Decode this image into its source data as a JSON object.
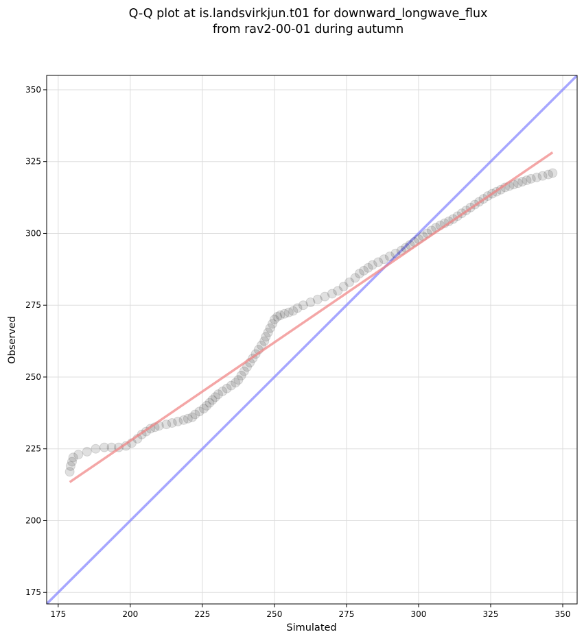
{
  "chart_data": {
    "type": "scatter",
    "title_line1": "Q-Q plot at is.landsvirkjun.t01 for downward_longwave_flux",
    "title_line2": "from rav2-00-01 during autumn",
    "xlabel": "Simulated",
    "ylabel": "Observed",
    "xlim": [
      171,
      355
    ],
    "ylim": [
      171,
      355
    ],
    "xticks": [
      175,
      200,
      225,
      250,
      275,
      300,
      325,
      350
    ],
    "yticks": [
      175,
      200,
      225,
      250,
      275,
      300,
      325,
      350
    ],
    "grid": true,
    "point_color": "#000000",
    "fit_line_color": "#f08080",
    "identity_line_color": "#8080ff",
    "fit_line": {
      "x": [
        179,
        346.5
      ],
      "y": [
        213.4,
        328.2
      ]
    },
    "identity_line": {
      "x": [
        171,
        355
      ],
      "y": [
        171,
        355
      ]
    },
    "points_x": [
      179.0,
      179.3,
      179.8,
      180.2,
      182.0,
      185.0,
      188.0,
      191.0,
      193.5,
      196.0,
      198.5,
      200.5,
      202.5,
      204.0,
      205.5,
      207.0,
      208.5,
      210.0,
      212.5,
      214.5,
      216.5,
      218.5,
      220.0,
      221.5,
      222.5,
      224.0,
      225.5,
      226.5,
      227.5,
      228.5,
      229.5,
      230.5,
      232.0,
      233.5,
      235.0,
      236.5,
      237.5,
      238.5,
      239.5,
      240.5,
      241.5,
      242.5,
      243.5,
      244.5,
      245.5,
      246.5,
      247.0,
      247.8,
      248.5,
      249.3,
      250.0,
      251.0,
      252.0,
      253.5,
      255.0,
      256.5,
      258.0,
      260.0,
      262.5,
      265.0,
      267.5,
      270.0,
      272.0,
      274.0,
      276.0,
      278.0,
      279.5,
      281.0,
      282.5,
      284.0,
      286.0,
      288.0,
      290.0,
      292.0,
      294.0,
      295.5,
      297.0,
      298.5,
      300.0,
      301.5,
      303.0,
      304.5,
      306.0,
      307.5,
      309.0,
      310.5,
      312.0,
      313.5,
      315.0,
      316.5,
      318.0,
      319.5,
      321.0,
      322.5,
      324.0,
      325.5,
      327.0,
      328.5,
      330.0,
      331.5,
      333.0,
      334.5,
      336.0,
      337.5,
      339.0,
      341.0,
      343.0,
      345.0,
      346.5
    ],
    "points_y": [
      217.0,
      219.0,
      220.5,
      222.0,
      223.0,
      224.0,
      225.0,
      225.5,
      225.5,
      225.5,
      226.0,
      227.0,
      228.5,
      230.0,
      231.0,
      232.0,
      232.5,
      233.0,
      233.5,
      234.0,
      234.5,
      235.0,
      235.5,
      236.0,
      237.0,
      238.0,
      239.0,
      240.0,
      241.0,
      242.0,
      243.0,
      244.0,
      245.0,
      246.0,
      247.0,
      248.0,
      249.0,
      250.5,
      252.0,
      253.5,
      255.0,
      256.5,
      258.0,
      259.5,
      261.0,
      262.5,
      264.0,
      265.5,
      267.0,
      268.5,
      270.0,
      271.0,
      271.5,
      272.0,
      272.5,
      273.0,
      274.0,
      275.0,
      276.0,
      277.0,
      278.0,
      279.0,
      280.0,
      281.5,
      283.0,
      284.5,
      286.0,
      287.0,
      288.0,
      289.0,
      290.0,
      291.0,
      292.0,
      293.0,
      294.0,
      295.0,
      296.0,
      297.0,
      298.0,
      299.0,
      300.0,
      301.0,
      302.0,
      302.8,
      303.5,
      304.2,
      305.0,
      306.0,
      307.0,
      308.0,
      309.0,
      310.0,
      311.0,
      312.0,
      313.0,
      313.8,
      314.5,
      315.2,
      316.0,
      316.5,
      317.0,
      317.5,
      318.0,
      318.5,
      319.0,
      319.5,
      320.0,
      320.5,
      321.0
    ]
  }
}
